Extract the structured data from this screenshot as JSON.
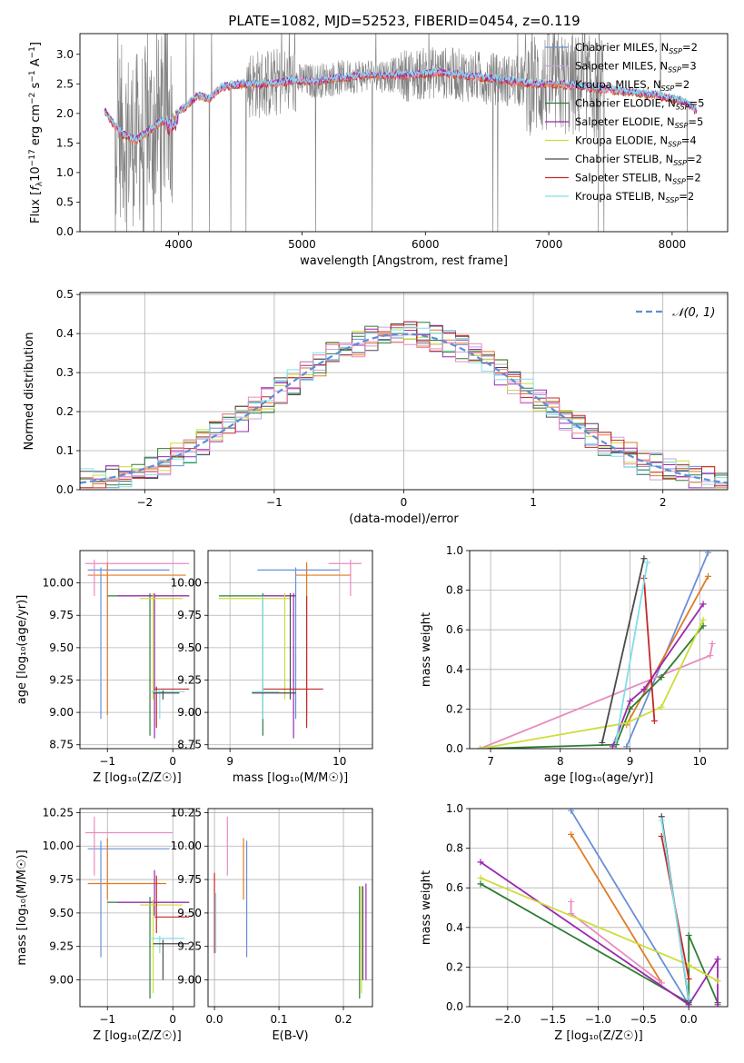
{
  "figure": {
    "title": "PLATE=1082, MJD=52523, FIBERID=0454, z=0.119"
  },
  "colors": {
    "chabrier_miles": "#6a8fd8",
    "salpeter_miles": "#c9a3d8",
    "kroupa_miles": "#e07b22",
    "chabrier_elodie": "#2e7d32",
    "salpeter_elodie": "#9c27b0",
    "kroupa_elodie": "#cddc39",
    "chabrier_stelib": "#4a4a4a",
    "salpeter_stelib": "#c62828",
    "kroupa_stelib": "#80deea",
    "pink": "#e98cbf",
    "normal": "#5b8fd6",
    "data": "#808080"
  },
  "chart_data": [
    {
      "id": "spectrum",
      "type": "line",
      "xlabel": "wavelength [Angstrom, rest frame]",
      "ylabel_parts": [
        "Flux [",
        "f",
        "λ",
        "10",
        "−17",
        " erg cm",
        "−2",
        " s",
        "−1",
        " A",
        "−1",
        "]"
      ],
      "xlim": [
        3200,
        8450
      ],
      "ylim": [
        0,
        3.35
      ],
      "xticks": [
        4000,
        5000,
        6000,
        7000,
        8000
      ],
      "yticks": [
        "0.0",
        "0.5",
        "1.0",
        "1.5",
        "2.0",
        "2.5",
        "3.0"
      ],
      "ytick_values": [
        0,
        0.5,
        1.0,
        1.5,
        2.0,
        2.5,
        3.0
      ],
      "legend": [
        {
          "label": "Chabrier MILES, N",
          "sub": "SSP",
          "tail": "=2",
          "color": "#6a8fd8"
        },
        {
          "label": "Salpeter MILES, N",
          "sub": "SSP",
          "tail": "=3",
          "color": "#c9a3d8"
        },
        {
          "label": "Kroupa MILES, N",
          "sub": "SSP",
          "tail": "=2",
          "color": "#e07b22"
        },
        {
          "label": "Chabrier ELODIE, N",
          "sub": "SSP",
          "tail": "=5",
          "color": "#2e7d32"
        },
        {
          "label": "Salpeter ELODIE, N",
          "sub": "SSP",
          "tail": "=5",
          "color": "#9c27b0"
        },
        {
          "label": "Kroupa ELODIE, N",
          "sub": "SSP",
          "tail": "=4",
          "color": "#cddc39"
        },
        {
          "label": "Chabrier STELIB, N",
          "sub": "SSP",
          "tail": "=2",
          "color": "#4a4a4a"
        },
        {
          "label": "Salpeter STELIB, N",
          "sub": "SSP",
          "tail": "=2",
          "color": "#c62828"
        },
        {
          "label": "Kroupa STELIB, N",
          "sub": "SSP",
          "tail": "=2",
          "color": "#80deea"
        }
      ],
      "continuum": [
        [
          3400,
          2.05
        ],
        [
          3480,
          1.8
        ],
        [
          3550,
          1.65
        ],
        [
          3650,
          1.55
        ],
        [
          3750,
          1.7
        ],
        [
          3850,
          1.85
        ],
        [
          3950,
          1.95
        ],
        [
          4050,
          2.1
        ],
        [
          4150,
          2.3
        ],
        [
          4250,
          2.25
        ],
        [
          4350,
          2.45
        ],
        [
          4500,
          2.5
        ],
        [
          4700,
          2.5
        ],
        [
          4900,
          2.55
        ],
        [
          5100,
          2.55
        ],
        [
          5300,
          2.6
        ],
        [
          5500,
          2.65
        ],
        [
          5700,
          2.65
        ],
        [
          5900,
          2.65
        ],
        [
          6100,
          2.7
        ],
        [
          6300,
          2.65
        ],
        [
          6500,
          2.6
        ],
        [
          6700,
          2.55
        ],
        [
          6900,
          2.5
        ],
        [
          7100,
          2.5
        ],
        [
          7300,
          2.45
        ],
        [
          7500,
          2.4
        ],
        [
          7700,
          2.35
        ],
        [
          7900,
          2.3
        ],
        [
          8100,
          2.2
        ],
        [
          8200,
          2.05
        ]
      ]
    },
    {
      "id": "residuals",
      "type": "histogram",
      "xlabel": "(data-model)/error",
      "ylabel": "Normed distribution",
      "xlim": [
        -2.5,
        2.5
      ],
      "ylim": [
        0,
        0.505
      ],
      "xticks": [
        "−2",
        "−1",
        "0",
        "1",
        "2"
      ],
      "xtick_values": [
        -2,
        -1,
        0,
        1,
        2
      ],
      "yticks": [
        "0.0",
        "0.1",
        "0.2",
        "0.3",
        "0.4",
        "0.5"
      ],
      "ytick_values": [
        0,
        0.1,
        0.2,
        0.3,
        0.4,
        0.5
      ],
      "legend_label": "𝒩(0, 1)",
      "bin_width": 0.1
    },
    {
      "id": "age_vs_Z",
      "type": "errorbar",
      "xlabel": "Z [log₁₀(Z/Z☉)]",
      "ylabel": "age  [log₁₀(age/yr)]",
      "xlim": [
        -1.42,
        0.33
      ],
      "ylim": [
        8.72,
        10.25
      ],
      "xticks": [
        "−1",
        "0"
      ],
      "xtick_values": [
        -1,
        0
      ],
      "yticks": [
        "8.75",
        "9.00",
        "9.25",
        "9.50",
        "9.75",
        "10.00"
      ],
      "ytick_values": [
        8.75,
        9.0,
        9.25,
        9.5,
        9.75,
        10.0
      ],
      "points": [
        {
          "x": -1.1,
          "y": 10.1,
          "xl": -1.3,
          "xh": -0.05,
          "yl": 8.95,
          "yh": 10.12,
          "c": "#6a8fd8"
        },
        {
          "x": -1.0,
          "y": 10.06,
          "xl": -1.3,
          "xh": 0.2,
          "yl": 8.98,
          "yh": 10.16,
          "c": "#e07b22"
        },
        {
          "x": -1.2,
          "y": 10.15,
          "xl": -1.34,
          "xh": 0.25,
          "yl": 9.9,
          "yh": 10.18,
          "c": "#e98cbf"
        },
        {
          "x": -0.35,
          "y": 9.9,
          "xl": -1.0,
          "xh": 0.25,
          "yl": 8.82,
          "yh": 9.92,
          "c": "#2e7d32"
        },
        {
          "x": -0.28,
          "y": 9.9,
          "xl": -0.85,
          "xh": 0.25,
          "yl": 8.8,
          "yh": 9.92,
          "c": "#9c27b0"
        },
        {
          "x": -0.3,
          "y": 9.88,
          "xl": -0.5,
          "xh": 0.15,
          "yl": 9.1,
          "yh": 9.92,
          "c": "#cddc39"
        },
        {
          "x": -0.25,
          "y": 9.18,
          "xl": -0.28,
          "xh": 0.25,
          "yl": 8.88,
          "yh": 9.2,
          "c": "#c62828"
        },
        {
          "x": -0.2,
          "y": 9.16,
          "xl": -0.35,
          "xh": 0.18,
          "yl": 8.95,
          "yh": 9.18,
          "c": "#80deea"
        },
        {
          "x": -0.15,
          "y": 9.15,
          "xl": -0.3,
          "xh": 0.1,
          "yl": 9.1,
          "yh": 9.17,
          "c": "#4a4a4a"
        }
      ]
    },
    {
      "id": "age_vs_mass",
      "type": "errorbar",
      "xlabel": "mass [log₁₀(M/M☉)]",
      "ylabel": "",
      "xlim": [
        8.8,
        10.3
      ],
      "ylim": [
        8.72,
        10.25
      ],
      "xticks": [
        "9",
        "10"
      ],
      "xtick_values": [
        9,
        10
      ],
      "yticks": [
        "8.75",
        "9.00",
        "9.25",
        "9.50",
        "9.75",
        "10.00"
      ],
      "ytick_values": [
        8.75,
        9.0,
        9.25,
        9.5,
        9.75,
        10.0
      ],
      "points": [
        {
          "x": 9.6,
          "y": 10.1,
          "xl": 9.25,
          "xh": 10.0,
          "yl": 8.95,
          "yh": 10.12,
          "c": "#6a8fd8"
        },
        {
          "x": 9.7,
          "y": 10.06,
          "xl": 9.6,
          "xh": 10.1,
          "yl": 8.98,
          "yh": 10.16,
          "c": "#e07b22"
        },
        {
          "x": 10.1,
          "y": 10.15,
          "xl": 9.9,
          "xh": 10.2,
          "yl": 9.9,
          "yh": 10.18,
          "c": "#e98cbf"
        },
        {
          "x": 9.3,
          "y": 9.9,
          "xl": 8.9,
          "xh": 9.6,
          "yl": 8.82,
          "yh": 9.92,
          "c": "#2e7d32"
        },
        {
          "x": 9.58,
          "y": 9.9,
          "xl": 9.3,
          "xh": 9.6,
          "yl": 8.8,
          "yh": 9.92,
          "c": "#9c27b0"
        },
        {
          "x": 9.5,
          "y": 9.88,
          "xl": 8.9,
          "xh": 9.55,
          "yl": 9.1,
          "yh": 9.92,
          "c": "#cddc39"
        },
        {
          "x": 9.7,
          "y": 9.18,
          "xl": 9.3,
          "xh": 9.85,
          "yl": 8.88,
          "yh": 9.9,
          "c": "#c62828"
        },
        {
          "x": 9.3,
          "y": 9.16,
          "xl": 9.2,
          "xh": 9.45,
          "yl": 8.95,
          "yh": 9.9,
          "c": "#80deea"
        },
        {
          "x": 9.55,
          "y": 9.15,
          "xl": 9.2,
          "xh": 9.6,
          "yl": 9.1,
          "yh": 9.92,
          "c": "#4a4a4a"
        }
      ]
    },
    {
      "id": "weight_vs_age",
      "type": "line",
      "xlabel": "age  [log₁₀(age/yr)]",
      "ylabel": "mass weight",
      "xlim": [
        6.7,
        10.4
      ],
      "ylim": [
        0,
        1.0
      ],
      "xticks": [
        "7",
        "8",
        "9",
        "10"
      ],
      "xtick_values": [
        7,
        8,
        9,
        10
      ],
      "yticks": [
        "0.0",
        "0.2",
        "0.4",
        "0.6",
        "0.8",
        "1.0"
      ],
      "ytick_values": [
        0,
        0.2,
        0.4,
        0.6,
        0.8,
        1.0
      ],
      "series": [
        {
          "c": "#6a8fd8",
          "x": [
            8.95,
            10.12
          ],
          "y": [
            0.01,
            0.99
          ]
        },
        {
          "c": "#e07b22",
          "x": [
            8.95,
            10.12
          ],
          "y": [
            0.12,
            0.87
          ]
        },
        {
          "c": "#e98cbf",
          "x": [
            6.85,
            10.15,
            10.18
          ],
          "y": [
            0.0,
            0.47,
            0.53
          ]
        },
        {
          "c": "#2e7d32",
          "x": [
            6.85,
            8.8,
            9.0,
            9.45,
            10.05
          ],
          "y": [
            0.0,
            0.02,
            0.2,
            0.36,
            0.62
          ]
        },
        {
          "c": "#9c27b0",
          "x": [
            8.75,
            9.0,
            9.2,
            10.05
          ],
          "y": [
            0.01,
            0.24,
            0.3,
            0.73
          ]
        },
        {
          "c": "#cddc39",
          "x": [
            6.85,
            8.95,
            9.45,
            10.05
          ],
          "y": [
            0.0,
            0.13,
            0.21,
            0.65
          ]
        },
        {
          "c": "#4a4a4a",
          "x": [
            8.6,
            9.2
          ],
          "y": [
            0.03,
            0.96
          ]
        },
        {
          "c": "#c62828",
          "x": [
            9.2,
            9.35
          ],
          "y": [
            0.86,
            0.14
          ]
        },
        {
          "c": "#80deea",
          "x": [
            8.8,
            9.25
          ],
          "y": [
            0.04,
            0.94
          ]
        }
      ]
    },
    {
      "id": "mass_vs_Z",
      "type": "errorbar",
      "xlabel": "Z [log₁₀(Z/Z☉)]",
      "ylabel": "mass [log₁₀(M/M☉)]",
      "xlim": [
        -1.42,
        0.33
      ],
      "ylim": [
        8.8,
        10.28
      ],
      "xticks": [
        "−1",
        "0"
      ],
      "xtick_values": [
        -1,
        0
      ],
      "yticks": [
        "9.00",
        "9.25",
        "9.50",
        "9.75",
        "10.00",
        "10.25"
      ],
      "ytick_values": [
        9.0,
        9.25,
        9.5,
        9.75,
        10.0,
        10.25
      ],
      "points": [
        {
          "x": -1.1,
          "y": 9.98,
          "xl": -1.3,
          "xh": -0.05,
          "yl": 9.17,
          "yh": 10.04,
          "c": "#6a8fd8"
        },
        {
          "x": -1.0,
          "y": 9.72,
          "xl": -1.3,
          "xh": -0.1,
          "yl": 9.6,
          "yh": 10.06,
          "c": "#e07b22"
        },
        {
          "x": -1.2,
          "y": 10.1,
          "xl": -1.34,
          "xh": 0.0,
          "yl": 9.78,
          "yh": 10.22,
          "c": "#e98cbf"
        },
        {
          "x": -0.35,
          "y": 9.58,
          "xl": -1.0,
          "xh": 0.25,
          "yl": 8.86,
          "yh": 9.62,
          "c": "#2e7d32"
        },
        {
          "x": -0.28,
          "y": 9.58,
          "xl": -0.85,
          "xh": 0.25,
          "yl": 9.48,
          "yh": 9.82,
          "c": "#9c27b0"
        },
        {
          "x": -0.3,
          "y": 9.56,
          "xl": -0.5,
          "xh": 0.15,
          "yl": 8.9,
          "yh": 9.6,
          "c": "#cddc39"
        },
        {
          "x": -0.25,
          "y": 9.47,
          "xl": -0.28,
          "xh": 0.25,
          "yl": 9.35,
          "yh": 9.78,
          "c": "#c62828"
        },
        {
          "x": -0.2,
          "y": 9.31,
          "xl": -0.35,
          "xh": 0.18,
          "yl": 9.2,
          "yh": 9.33,
          "c": "#80deea"
        },
        {
          "x": -0.15,
          "y": 9.27,
          "xl": -0.3,
          "xh": 0.25,
          "yl": 9.0,
          "yh": 9.3,
          "c": "#4a4a4a"
        }
      ]
    },
    {
      "id": "mass_vs_ebv",
      "type": "errorbar",
      "xlabel": "E(B-V)",
      "ylabel": "",
      "xlim": [
        -0.01,
        0.245
      ],
      "ylim": [
        8.8,
        10.28
      ],
      "xticks": [
        "0.0",
        "0.1",
        "0.2"
      ],
      "xtick_values": [
        0,
        0.1,
        0.2
      ],
      "yticks": [
        "9.00",
        "9.25",
        "9.50",
        "9.75",
        "10.00",
        "10.25"
      ],
      "ytick_values": [
        9.0,
        9.25,
        9.5,
        9.75,
        10.0,
        10.25
      ],
      "points": [
        {
          "x": 0.05,
          "y": 9.9,
          "xl": 0.05,
          "xh": 0.05,
          "yl": 9.17,
          "yh": 10.04,
          "c": "#6a8fd8"
        },
        {
          "x": 0.045,
          "y": 9.8,
          "xl": 0.045,
          "xh": 0.045,
          "yl": 9.6,
          "yh": 10.06,
          "c": "#e07b22"
        },
        {
          "x": 0.02,
          "y": 10.1,
          "xl": 0.02,
          "xh": 0.02,
          "yl": 9.78,
          "yh": 10.22,
          "c": "#e98cbf"
        },
        {
          "x": 0.225,
          "y": 9.5,
          "xl": 0.225,
          "xh": 0.225,
          "yl": 8.86,
          "yh": 9.7,
          "c": "#2e7d32"
        },
        {
          "x": 0.235,
          "y": 9.5,
          "xl": 0.235,
          "xh": 0.235,
          "yl": 9.0,
          "yh": 9.72,
          "c": "#9c27b0"
        },
        {
          "x": 0.228,
          "y": 9.4,
          "xl": 0.228,
          "xh": 0.228,
          "yl": 8.9,
          "yh": 9.7,
          "c": "#cddc39"
        },
        {
          "x": 0.0,
          "y": 9.6,
          "xl": 0.0,
          "xh": 0.0,
          "yl": 9.2,
          "yh": 9.8,
          "c": "#c62828"
        },
        {
          "x": 0.002,
          "y": 9.3,
          "xl": 0.002,
          "xh": 0.002,
          "yl": 9.2,
          "yh": 9.65,
          "c": "#80deea"
        },
        {
          "x": 0.23,
          "y": 9.4,
          "xl": 0.23,
          "xh": 0.23,
          "yl": 9.0,
          "yh": 9.7,
          "c": "#4a4a4a"
        }
      ]
    },
    {
      "id": "weight_vs_Z",
      "type": "line",
      "xlabel": "Z [log₁₀(Z/Z☉)]",
      "ylabel": "mass weight",
      "xlim": [
        -2.42,
        0.43
      ],
      "ylim": [
        0,
        1.0
      ],
      "xticks": [
        "−2.0",
        "−1.5",
        "−1.0",
        "−0.5",
        "0.0"
      ],
      "xtick_values": [
        -2.0,
        -1.5,
        -1.0,
        -0.5,
        0.0
      ],
      "yticks": [
        "0.0",
        "0.2",
        "0.4",
        "0.6",
        "0.8",
        "1.0"
      ],
      "ytick_values": [
        0,
        0.2,
        0.4,
        0.6,
        0.8,
        1.0
      ],
      "series": [
        {
          "c": "#6a8fd8",
          "x": [
            -1.3,
            0.0
          ],
          "y": [
            0.99,
            0.01
          ]
        },
        {
          "c": "#e07b22",
          "x": [
            -1.3,
            -0.3
          ],
          "y": [
            0.87,
            0.12
          ]
        },
        {
          "c": "#e98cbf",
          "x": [
            -1.3,
            -1.3,
            -0.3,
            -0.3
          ],
          "y": [
            0.53,
            0.47,
            0.12,
            0.12
          ]
        },
        {
          "c": "#2e7d32",
          "x": [
            -2.3,
            0.0,
            0.0,
            0.32
          ],
          "y": [
            0.62,
            0.02,
            0.36,
            0.02
          ]
        },
        {
          "c": "#9c27b0",
          "x": [
            -2.3,
            0.0,
            0.32,
            0.32
          ],
          "y": [
            0.73,
            0.01,
            0.24,
            0.01
          ]
        },
        {
          "c": "#cddc39",
          "x": [
            -2.3,
            0.0,
            0.32
          ],
          "y": [
            0.65,
            0.21,
            0.13
          ]
        },
        {
          "c": "#4a4a4a",
          "x": [
            -0.3,
            0.0
          ],
          "y": [
            0.96,
            0.03
          ]
        },
        {
          "c": "#c62828",
          "x": [
            -0.3,
            0.0
          ],
          "y": [
            0.86,
            0.14
          ]
        },
        {
          "c": "#80deea",
          "x": [
            -0.3,
            0.0
          ],
          "y": [
            0.94,
            0.04
          ]
        }
      ]
    }
  ]
}
